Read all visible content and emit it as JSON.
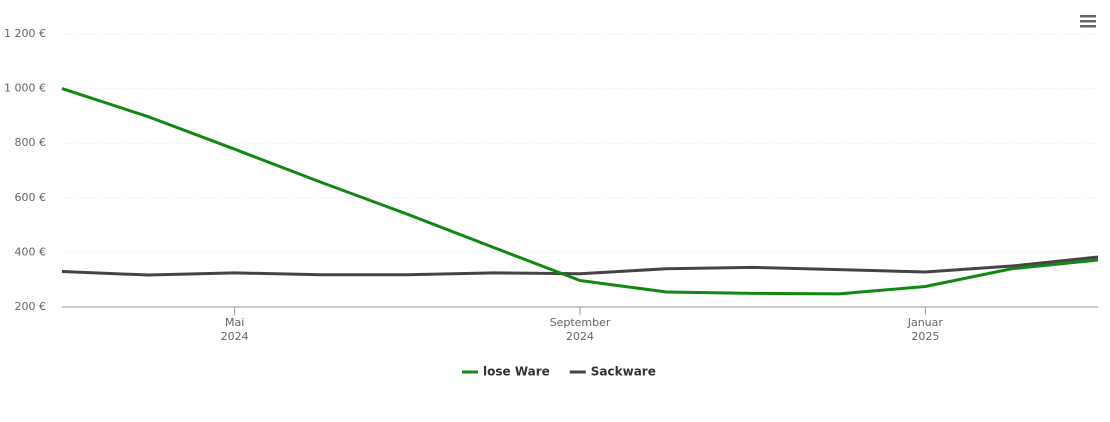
{
  "chart_data": {
    "type": "line",
    "x": [
      "2024-03",
      "2024-04",
      "2024-05",
      "2024-06",
      "2024-07",
      "2024-08",
      "2024-09",
      "2024-10",
      "2024-11",
      "2024-12",
      "2025-01",
      "2025-02",
      "2025-03"
    ],
    "series": [
      {
        "name": "lose Ware",
        "color": "#118811",
        "values": [
          1000,
          897,
          778,
          657,
          540,
          418,
          297,
          255,
          250,
          248,
          275,
          340,
          372
        ]
      },
      {
        "name": "Sackware",
        "color": "#444444",
        "values": [
          330,
          317,
          325,
          318,
          318,
          325,
          322,
          340,
          345,
          337,
          328,
          350,
          383
        ]
      }
    ],
    "xlim": [
      "2024-03",
      "2025-03"
    ],
    "xticks": [
      {
        "value": "2024-05",
        "label": [
          "Mai",
          "2024"
        ]
      },
      {
        "value": "2024-09",
        "label": [
          "September",
          "2024"
        ]
      },
      {
        "value": "2025-01",
        "label": [
          "Januar",
          "2025"
        ]
      }
    ],
    "ylim": [
      200,
      1200
    ],
    "yticks": [
      {
        "value": 200,
        "label": "200 €"
      },
      {
        "value": 400,
        "label": "400 €"
      },
      {
        "value": 600,
        "label": "600 €"
      },
      {
        "value": 800,
        "label": "800 €"
      },
      {
        "value": 1000,
        "label": "1 000 €"
      },
      {
        "value": 1200,
        "label": "1 200 €"
      }
    ],
    "grid": true,
    "legend": "bottom"
  }
}
